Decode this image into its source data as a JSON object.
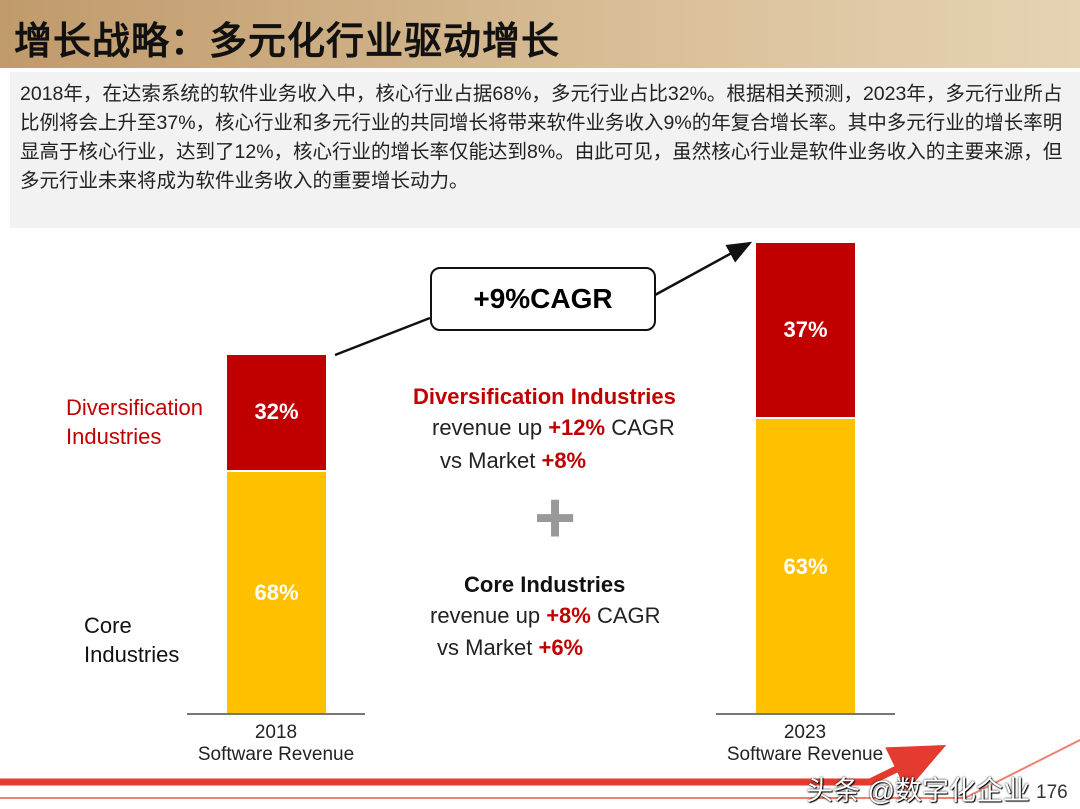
{
  "title": "增长战略：多元化行业驱动增长",
  "summary": "2018年，在达索系统的软件业务收入中，核心行业占据68%，多元行业占比32%。根据相关预测，2023年，多元行业所占比例将会上升至37%，核心行业和多元行业的共同增长将带来软件业务收入9%的年复合增长率。其中多元行业的增长率明显高于核心行业，达到了12%，核心行业的增长率仅能达到8%。由此可见，虽然核心行业是软件业务收入的主要来源，但多元行业未来将成为软件业务收入的重要增长动力。",
  "chart_data": {
    "type": "bar",
    "stacked": true,
    "categories": [
      "2018\nSoftware Revenue",
      "2023\nSoftware Revenue"
    ],
    "category_years": [
      "2018",
      "2023"
    ],
    "category_sub": "Software Revenue",
    "series": [
      {
        "name": "Core Industries",
        "values": [
          68,
          63
        ],
        "labels": [
          "68%",
          "63%"
        ],
        "color": "#ffc000"
      },
      {
        "name": "Diversification Industries",
        "values": [
          32,
          37
        ],
        "labels": [
          "32%",
          "37%"
        ],
        "color": "#c00000"
      }
    ],
    "legend": {
      "div_label": "Diversification Industries",
      "core_label": "Core Industries"
    },
    "cagr_label": "+9%CAGR"
  },
  "notes": {
    "div": {
      "title": "Diversification Industries",
      "rev_pre": "revenue up ",
      "rev_val": "+12%",
      "rev_post": " CAGR",
      "mkt_pre": "vs Market ",
      "mkt_val": "+8%"
    },
    "core": {
      "title": "Core Industries",
      "rev_pre": "revenue up ",
      "rev_val": "+8%",
      "rev_post": " CAGR",
      "mkt_pre": "vs Market ",
      "mkt_val": "+6%"
    },
    "plus": "+"
  },
  "watermark": "头条 @数字化企业",
  "page_number": "176"
}
